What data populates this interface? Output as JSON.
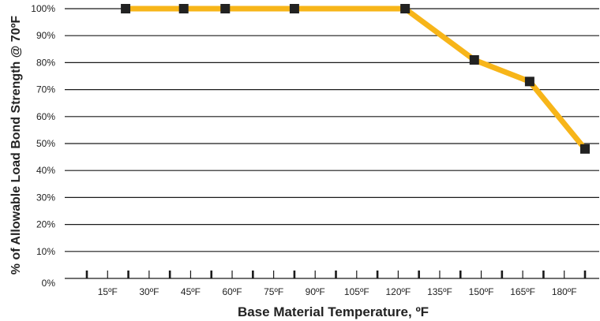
{
  "chart_data": {
    "type": "line",
    "title": "",
    "xlabel": "Base Material Temperature, ºF",
    "ylabel": "% of Allowable Load Bond Strength @ 70ºF",
    "x_tick_labels": [
      "15ºF",
      "30ºF",
      "45ºF",
      "60ºF",
      "75ºF",
      "90ºF",
      "105ºF",
      "120ºF",
      "135ºF",
      "150ºF",
      "165ºF",
      "180ºF"
    ],
    "y_tick_labels": [
      "0%",
      "10%",
      "20%",
      "30%",
      "40%",
      "50%",
      "60%",
      "70%",
      "80%",
      "90%",
      "100%"
    ],
    "xlim": [
      0,
      180
    ],
    "ylim": [
      0,
      100
    ],
    "grid": true,
    "series": [
      {
        "x": [
          14,
          35,
          50,
          75,
          115,
          140,
          160,
          180
        ],
        "y": [
          100,
          100,
          100,
          100,
          100,
          81,
          73,
          48
        ],
        "line_color": "#f7b519",
        "marker_color": "#222222"
      }
    ]
  }
}
